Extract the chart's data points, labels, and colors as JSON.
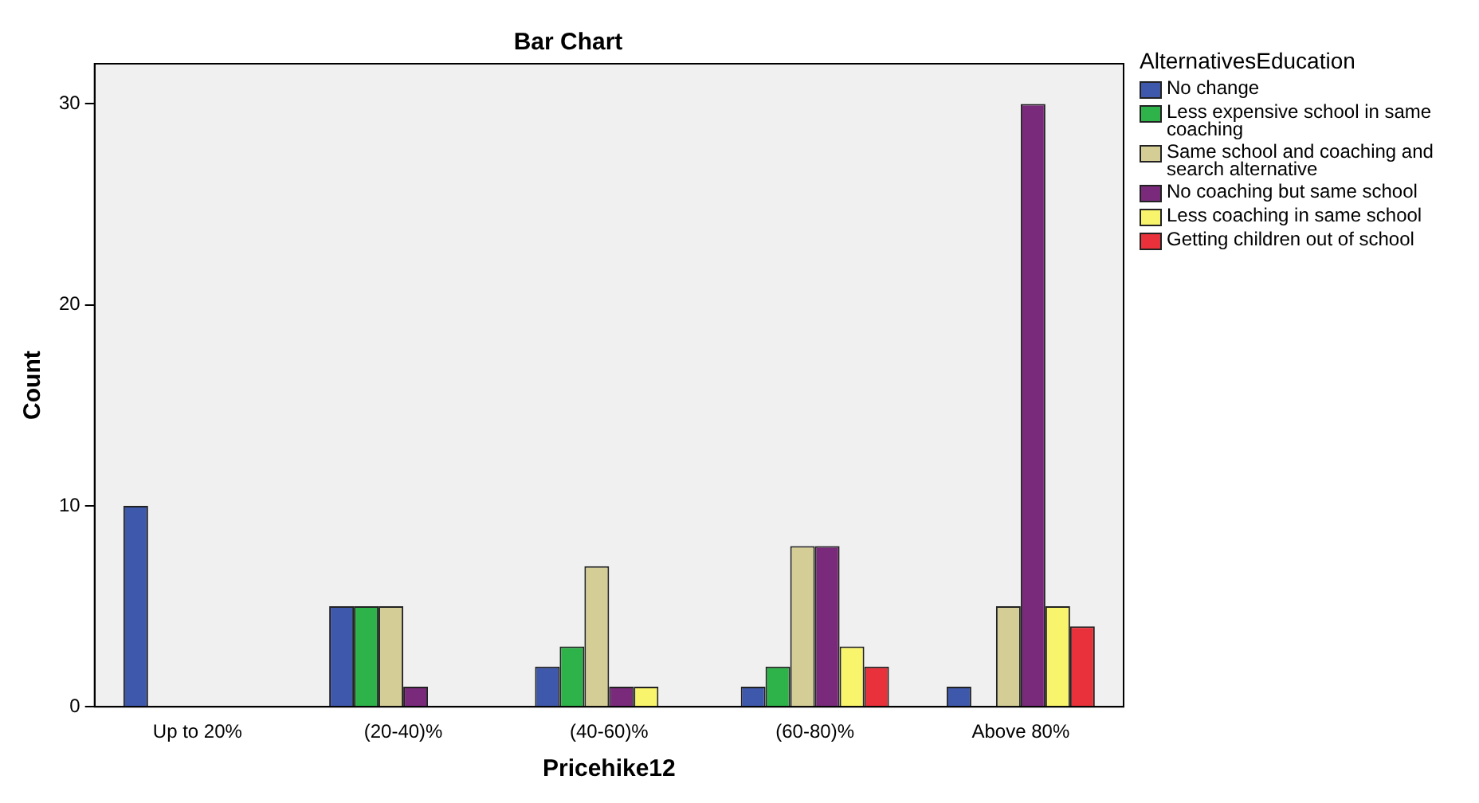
{
  "chart_data": {
    "type": "bar",
    "title": "Bar Chart",
    "xlabel": "Pricehike12",
    "ylabel": "Count",
    "legend_title": "AlternativesEducation",
    "categories": [
      "Up to 20%",
      "(20-40)%",
      "(40-60)%",
      "(60-80)%",
      "Above 80%"
    ],
    "series": [
      {
        "name": "No change",
        "color": "#3e58ac",
        "values": [
          10,
          5,
          2,
          1,
          1
        ]
      },
      {
        "name": "Less expensive school in same coaching",
        "color": "#2eb34a",
        "values": [
          null,
          5,
          3,
          2,
          null
        ]
      },
      {
        "name": "Same school and coaching and search alternative",
        "color": "#d4ce96",
        "values": [
          null,
          5,
          7,
          8,
          5
        ]
      },
      {
        "name": "No coaching but same school",
        "color": "#7a2a7a",
        "values": [
          null,
          1,
          1,
          8,
          30
        ]
      },
      {
        "name": "Less coaching in same school",
        "color": "#f8f46c",
        "values": [
          null,
          null,
          1,
          3,
          5
        ]
      },
      {
        "name": "Getting children out of school",
        "color": "#e8313a",
        "values": [
          null,
          null,
          null,
          2,
          4
        ]
      }
    ],
    "ylim": [
      0,
      32
    ],
    "yticks": [
      0,
      10,
      20,
      30
    ],
    "grid": false,
    "legend": "right"
  }
}
